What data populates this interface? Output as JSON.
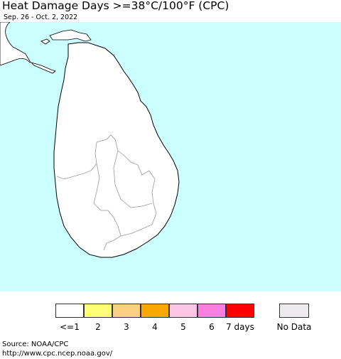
{
  "header": {
    "title": "Heat Damage Days >=38°C/100°F (CPC)",
    "date_range": "Sep. 26 - Oct. 2, 2022"
  },
  "map": {
    "ocean_color": "#ccffff",
    "land_color": "#ffffff",
    "border_color": "#000000",
    "district_border_color": "#999999"
  },
  "legend": {
    "items": [
      {
        "label": "<=1",
        "color": "#ffffff"
      },
      {
        "label": "2",
        "color": "#ffff77"
      },
      {
        "label": "3",
        "color": "#fbd080"
      },
      {
        "label": "4",
        "color": "#f9a800"
      },
      {
        "label": "5",
        "color": "#fdc6e6"
      },
      {
        "label": "6",
        "color": "#f97fe0"
      },
      {
        "label": "7 days",
        "color": "#ff0000"
      }
    ],
    "no_data": {
      "label": "No Data",
      "color": "#eeeaee"
    }
  },
  "source": {
    "line1": "Source: NOAA/CPC",
    "line2": "http://www.cpc.ncep.noaa.gov/"
  }
}
